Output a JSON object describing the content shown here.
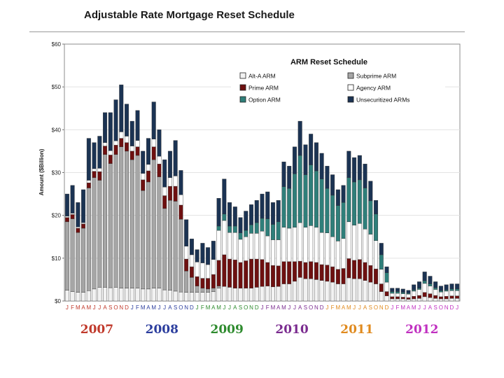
{
  "page": {
    "title": "Adjustable Rate Mortgage Reset Schedule"
  },
  "chart_data": {
    "type": "bar",
    "stacked": true,
    "title": "ARM Reset Schedule",
    "ylabel": "Amount ($Billion)",
    "ylim": [
      0,
      60
    ],
    "yticks": [
      "$0",
      "$10",
      "$20",
      "$30",
      "$40",
      "$50",
      "$60"
    ],
    "ytick_values": [
      0,
      10,
      20,
      30,
      40,
      50,
      60
    ],
    "xlabels": [
      "J",
      "F",
      "M",
      "A",
      "M",
      "J",
      "J",
      "A",
      "S",
      "O",
      "N",
      "D",
      "J",
      "F",
      "M",
      "A",
      "M",
      "J",
      "J",
      "A",
      "S",
      "O",
      "N",
      "D",
      "J",
      "F",
      "M",
      "A",
      "M",
      "J",
      "J",
      "A",
      "S",
      "O",
      "N",
      "D",
      "J",
      "F",
      "M",
      "A",
      "M",
      "J",
      "J",
      "A",
      "S",
      "O",
      "N",
      "D",
      "J",
      "F",
      "M",
      "A",
      "M",
      "J",
      "J",
      "A",
      "S",
      "O",
      "N",
      "D",
      "J",
      "F",
      "M",
      "A",
      "M",
      "J",
      "J",
      "A",
      "S",
      "O",
      "N",
      "D",
      "J"
    ],
    "label_colors": [
      "#c0392b",
      "#2c3e9e",
      "#2e8b2e",
      "#7a2b8f",
      "#e08a1e",
      "#c030c0"
    ],
    "years": [
      {
        "label": "2007",
        "color": "#c0392b"
      },
      {
        "label": "2008",
        "color": "#2c3e9e"
      },
      {
        "label": "2009",
        "color": "#2e8b2e"
      },
      {
        "label": "2010",
        "color": "#7a2b8f"
      },
      {
        "label": "2011",
        "color": "#e08a1e"
      },
      {
        "label": "2012",
        "color": "#c030c0"
      }
    ],
    "legend": [
      {
        "name": "Alt-A ARM",
        "color": "#f2f2f2"
      },
      {
        "name": "Subprime ARM",
        "color": "#a6a6a6"
      },
      {
        "name": "Prime ARM",
        "color": "#6e1010"
      },
      {
        "name": "Agency ARM",
        "color": "#ffffff"
      },
      {
        "name": "Option ARM",
        "color": "#2f7f7a"
      },
      {
        "name": "Unsecuritized ARMs",
        "color": "#1b3353"
      }
    ],
    "series_order": [
      "Alt-A ARM",
      "Subprime ARM",
      "Prime ARM",
      "Agency ARM",
      "Option ARM",
      "Unsecuritized ARMs"
    ],
    "totals": [
      25,
      27,
      23,
      26,
      38,
      37,
      38.5,
      44,
      44,
      47,
      50.5,
      46,
      42,
      44.5,
      35,
      38,
      46.5,
      40,
      33,
      35,
      37.5,
      30.5,
      19,
      14.5,
      12,
      13.5,
      12.5,
      14,
      24,
      28.5,
      23,
      22,
      19.5,
      21,
      22.5,
      23.5,
      25,
      25.5,
      23,
      23.5,
      32.5,
      31.5,
      36,
      42,
      36.5,
      39,
      37,
      34.5,
      31.5,
      29.5,
      26,
      27,
      35,
      33.5,
      34,
      32,
      28,
      23.5,
      13.5,
      8,
      3,
      3,
      2.8,
      2.5,
      3.8,
      4.5,
      6.8,
      5.8,
      4.5,
      3.5,
      3.8,
      4,
      4
    ],
    "subprime": [
      16,
      17,
      14,
      15,
      24,
      26,
      25,
      31,
      29,
      31,
      33,
      32,
      30,
      31,
      23,
      25,
      30,
      26,
      19,
      21,
      21,
      17,
      5,
      3.5,
      1.5,
      1,
      0.8,
      0.8,
      0.5,
      0,
      0,
      0,
      0,
      0,
      0,
      0,
      0,
      0,
      0,
      0,
      0,
      0,
      0,
      0,
      0,
      0,
      0,
      0,
      0,
      0,
      0,
      0,
      0,
      0,
      0,
      0,
      0,
      0,
      0,
      0,
      0,
      0,
      0,
      0,
      0,
      0,
      0,
      0,
      0,
      0,
      0,
      0,
      0
    ],
    "altA": [
      2.5,
      2.2,
      2,
      2,
      2.4,
      2.8,
      3.2,
      3.2,
      3.1,
      3.2,
      3,
      3,
      3,
      3,
      2.8,
      2.8,
      3,
      3,
      2.6,
      2.5,
      2.3,
      2.1,
      2,
      2,
      2,
      2,
      2,
      2.2,
      3,
      3.4,
      3.2,
      3,
      3,
      3,
      3,
      3.2,
      3.4,
      3.5,
      3.3,
      3.4,
      4,
      4,
      4.6,
      5.5,
      5.2,
      5.2,
      5,
      4.8,
      4.6,
      4.4,
      4,
      4,
      5.4,
      5.2,
      5.2,
      4.8,
      4.4,
      4,
      2.2,
      1.2,
      0.5,
      0.5,
      0.5,
      0.4,
      0.5,
      0.6,
      1,
      0.8,
      0.6,
      0.5,
      0.5,
      0.6,
      0.6
    ],
    "prime": [
      1,
      1,
      1,
      1,
      1.2,
      1.5,
      2,
      2,
      2,
      2.2,
      2,
      2,
      2,
      2,
      2.5,
      2.6,
      3,
      3,
      3,
      3.3,
      3.5,
      3.3,
      2.8,
      2.5,
      2.2,
      2.3,
      2.5,
      3.2,
      6,
      7.4,
      6.6,
      6.6,
      6,
      6.4,
      6.8,
      6.6,
      6.3,
      5.5,
      5,
      4.8,
      5.2,
      5.2,
      4.6,
      3.8,
      3.8,
      4,
      4,
      3.7,
      3.8,
      3.6,
      3.4,
      3.6,
      4.5,
      4.3,
      4.5,
      4.2,
      3.9,
      3.5,
      1.8,
      1,
      0.5,
      0.5,
      0.4,
      0.4,
      0.6,
      0.7,
      1,
      0.9,
      0.7,
      0.5,
      0.6,
      0.6,
      0.6
    ],
    "agency": [
      0.3,
      0.3,
      0.3,
      0.3,
      0.6,
      0.6,
      0.8,
      0.8,
      1,
      1,
      1.5,
      1.5,
      1.2,
      1.5,
      1.5,
      1.5,
      1.8,
      1.8,
      2,
      2,
      2.4,
      2.4,
      3,
      2.8,
      3.4,
      3.6,
      3.2,
      3.5,
      7,
      8,
      6.2,
      6.4,
      5.4,
      5.6,
      6,
      6,
      6.6,
      6.2,
      6,
      6.1,
      8,
      7.8,
      8,
      9,
      8.2,
      8.4,
      8.2,
      7.5,
      7.5,
      7,
      6.6,
      7,
      8.6,
      8.2,
      8.4,
      7.8,
      7.3,
      6.6,
      3.4,
      2.2,
      0.8,
      0.8,
      0.8,
      0.8,
      1.2,
      1.4,
      2.1,
      1.8,
      1.4,
      1.1,
      1.2,
      1.2,
      1.2
    ],
    "option": [
      0,
      0,
      0,
      0,
      0,
      0,
      0,
      0,
      0,
      0,
      0,
      0,
      0,
      0,
      0,
      0,
      0,
      0,
      0,
      0,
      0,
      0,
      0,
      0,
      0,
      0,
      0,
      0,
      1,
      1.5,
      1.5,
      1.5,
      1.5,
      1.5,
      2,
      2.5,
      3,
      4,
      3.6,
      4.2,
      9.5,
      9.3,
      12.5,
      15.7,
      12.3,
      14.2,
      13.2,
      12.5,
      10.4,
      9.7,
      8.3,
      8.4,
      10.3,
      10.1,
      10.2,
      9.6,
      7.8,
      6.2,
      3.4,
      2.2,
      0.4,
      0.4,
      0.3,
      0.2,
      0.3,
      0.3,
      0.6,
      0.5,
      0.4,
      0.3,
      0.3,
      0.4,
      0.4
    ]
  }
}
